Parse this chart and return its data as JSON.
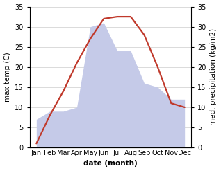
{
  "months": [
    "Jan",
    "Feb",
    "Mar",
    "Apr",
    "May",
    "Jun",
    "Jul",
    "Aug",
    "Sep",
    "Oct",
    "Nov",
    "Dec"
  ],
  "x": [
    1,
    2,
    3,
    4,
    5,
    6,
    7,
    8,
    9,
    10,
    11,
    12
  ],
  "temperature": [
    1,
    8,
    14,
    21,
    27,
    32,
    32.5,
    32.5,
    28,
    20,
    11,
    10
  ],
  "precipitation": [
    7,
    9,
    9,
    10,
    30,
    31,
    24,
    24,
    16,
    15,
    12,
    12
  ],
  "temp_color": "#c0392b",
  "precip_fill_color": "#c5cae8",
  "precip_edge_color": "#c5cae8",
  "background_color": "#ffffff",
  "ylim_left": [
    0,
    35
  ],
  "ylim_right": [
    0,
    35
  ],
  "xlabel": "date (month)",
  "ylabel_left": "max temp (C)",
  "ylabel_right": "med. precipitation (kg/m2)",
  "label_fontsize": 7.5,
  "tick_fontsize": 7,
  "axis_color": "#444444",
  "grid_color": "#cccccc",
  "yticks": [
    0,
    5,
    10,
    15,
    20,
    25,
    30,
    35
  ]
}
